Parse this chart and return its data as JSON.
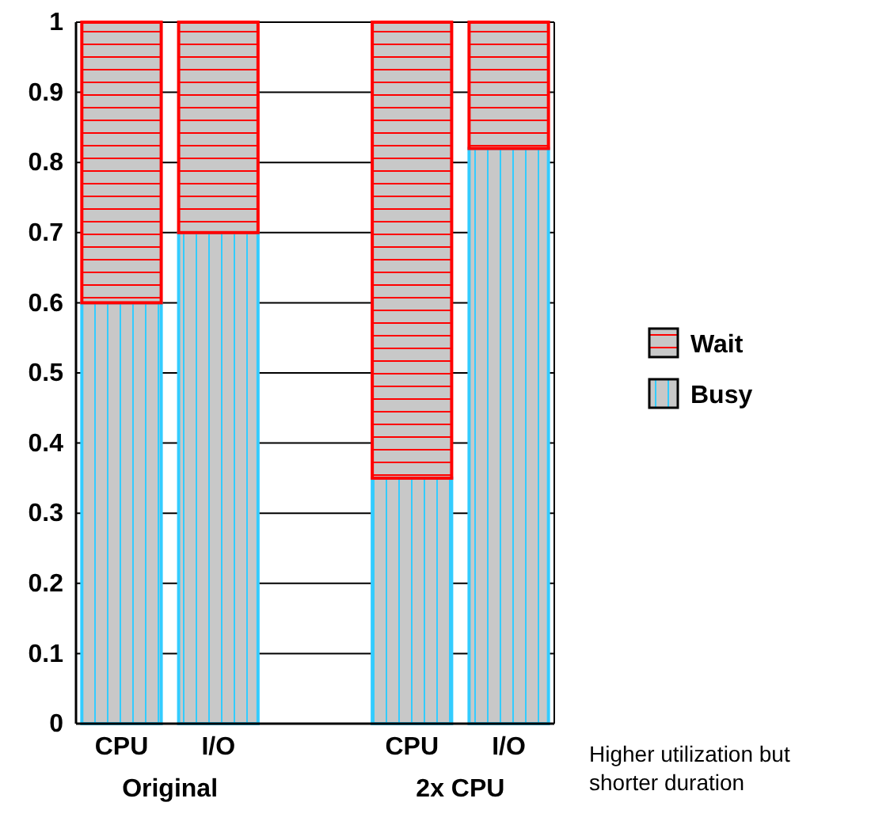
{
  "chart_data": {
    "type": "bar",
    "stacked": true,
    "categories": [
      "CPU",
      "I/O",
      null,
      "CPU",
      "I/O"
    ],
    "series": [
      {
        "name": "Busy",
        "color": "#33ccff",
        "values": [
          0.6,
          0.7,
          null,
          0.35,
          0.82
        ]
      },
      {
        "name": "Wait",
        "color": "#ff0000",
        "values": [
          0.4,
          0.3,
          null,
          0.65,
          0.18
        ]
      }
    ],
    "ylim": [
      0,
      1
    ],
    "yticks": [
      0,
      0.1,
      0.2,
      0.3,
      0.4,
      0.5,
      0.6,
      0.7,
      0.8,
      0.9,
      1
    ],
    "grid": "y",
    "legend": "right",
    "annotations": [
      "Original",
      "2x CPU",
      "Higher utilization but shorter duration"
    ]
  }
}
